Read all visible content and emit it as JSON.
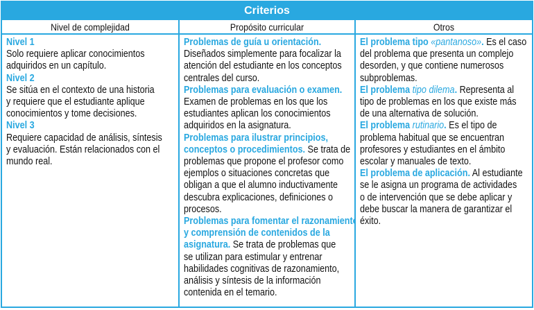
{
  "title": "Criterios",
  "headers": [
    "Nivel de complejidad",
    "Propósito curricular",
    "Otros"
  ],
  "colors": {
    "accent": "#29a8e0",
    "text": "#111111"
  },
  "columns": [
    [
      [
        {
          "t": "Nivel 1",
          "s": "b"
        }
      ],
      [
        {
          "t": "Solo requiere aplicar conocimientos",
          "s": "n"
        }
      ],
      [
        {
          "t": "adquiridos en un capítulo.",
          "s": "n"
        }
      ],
      [
        {
          "t": "Nivel 2",
          "s": "b"
        }
      ],
      [
        {
          "t": "Se sitúa en el contexto de una historia",
          "s": "n"
        }
      ],
      [
        {
          "t": "y requiere que el estudiante aplique",
          "s": "n"
        }
      ],
      [
        {
          "t": "conocimientos y tome decisiones.",
          "s": "n"
        }
      ],
      [
        {
          "t": "Nivel 3",
          "s": "b"
        }
      ],
      [
        {
          "t": "Requiere capacidad de análisis, síntesis",
          "s": "n"
        }
      ],
      [
        {
          "t": "y evaluación. Están relacionados con el",
          "s": "n"
        }
      ],
      [
        {
          "t": "mundo real.",
          "s": "n"
        }
      ]
    ],
    [
      [
        {
          "t": "Problemas de guía u orientación.",
          "s": "b"
        }
      ],
      [
        {
          "t": "Diseñados simplemente para focalizar la",
          "s": "n"
        }
      ],
      [
        {
          "t": "atención del estudiante en los conceptos",
          "s": "n"
        }
      ],
      [
        {
          "t": "centrales del curso.",
          "s": "n"
        }
      ],
      [
        {
          "t": "Problemas para evaluación o examen.",
          "s": "b"
        }
      ],
      [
        {
          "t": "Examen de problemas en los que los",
          "s": "n"
        }
      ],
      [
        {
          "t": "estudiantes aplican los conocimientos",
          "s": "n"
        }
      ],
      [
        {
          "t": "adquiridos en la asignatura.",
          "s": "n"
        }
      ],
      [
        {
          "t": "Problemas para ilustrar principios,",
          "s": "b"
        }
      ],
      [
        {
          "t": "conceptos o procedimientos.",
          "s": "b"
        },
        {
          "t": " Se trata de",
          "s": "n"
        }
      ],
      [
        {
          "t": "problemas que propone el profesor como",
          "s": "n"
        }
      ],
      [
        {
          "t": "ejemplos o situaciones concretas que",
          "s": "n"
        }
      ],
      [
        {
          "t": "obligan a que el alumno inductivamente",
          "s": "n"
        }
      ],
      [
        {
          "t": "descubra explicaciones, definiciones o",
          "s": "n"
        }
      ],
      [
        {
          "t": "procesos.",
          "s": "n"
        }
      ],
      [
        {
          "t": "Problemas para fomentar el razonamiento",
          "s": "b"
        }
      ],
      [
        {
          "t": "y comprensión de contenidos de la",
          "s": "b"
        }
      ],
      [
        {
          "t": "asignatura.",
          "s": "b"
        },
        {
          "t": " Se trata de problemas que",
          "s": "n"
        }
      ],
      [
        {
          "t": "se utilizan para estimular y entrenar",
          "s": "n"
        }
      ],
      [
        {
          "t": "habilidades cognitivas de razonamiento,",
          "s": "n"
        }
      ],
      [
        {
          "t": "análisis y síntesis de la información",
          "s": "n"
        }
      ],
      [
        {
          "t": "contenida en el temario.",
          "s": "n"
        }
      ]
    ],
    [
      [
        {
          "t": "El problema tipo ",
          "s": "b"
        },
        {
          "t": "«pantanoso»",
          "s": "bi"
        },
        {
          "t": ".",
          "s": "b"
        },
        {
          "t": "  Es el caso",
          "s": "n"
        }
      ],
      [
        {
          "t": "del problema que presenta un complejo",
          "s": "n"
        }
      ],
      [
        {
          "t": "desorden, y que contiene numerosos",
          "s": "n"
        }
      ],
      [
        {
          "t": "subproblemas.",
          "s": "n"
        }
      ],
      [
        {
          "t": "El problema ",
          "s": "b"
        },
        {
          "t": "tipo dilema",
          "s": "bi"
        },
        {
          "t": ".",
          "s": "b"
        },
        {
          "t": " Representa al",
          "s": "n"
        }
      ],
      [
        {
          "t": "tipo de problemas en los que existe más",
          "s": "n"
        }
      ],
      [
        {
          "t": "de una alternativa de solución.",
          "s": "n"
        }
      ],
      [
        {
          "t": "El problema ",
          "s": "b"
        },
        {
          "t": "rutinario",
          "s": "bi"
        },
        {
          "t": ".",
          "s": "b"
        },
        {
          "t": " Es el tipo de",
          "s": "n"
        }
      ],
      [
        {
          "t": "problema habitual que se encuentran",
          "s": "n"
        }
      ],
      [
        {
          "t": "profesores y estudiantes en el ámbito",
          "s": "n"
        }
      ],
      [
        {
          "t": "escolar y manuales de texto.",
          "s": "n"
        }
      ],
      [
        {
          "t": "El problema de aplicación.",
          "s": "b"
        },
        {
          "t": " Al estudiante",
          "s": "n"
        }
      ],
      [
        {
          "t": "se le asigna un programa de actividades",
          "s": "n"
        }
      ],
      [
        {
          "t": "o de intervención que se debe aplicar y",
          "s": "n"
        }
      ],
      [
        {
          "t": "debe buscar la manera de garantizar el",
          "s": "n"
        }
      ],
      [
        {
          "t": "éxito.",
          "s": "n"
        }
      ]
    ]
  ]
}
